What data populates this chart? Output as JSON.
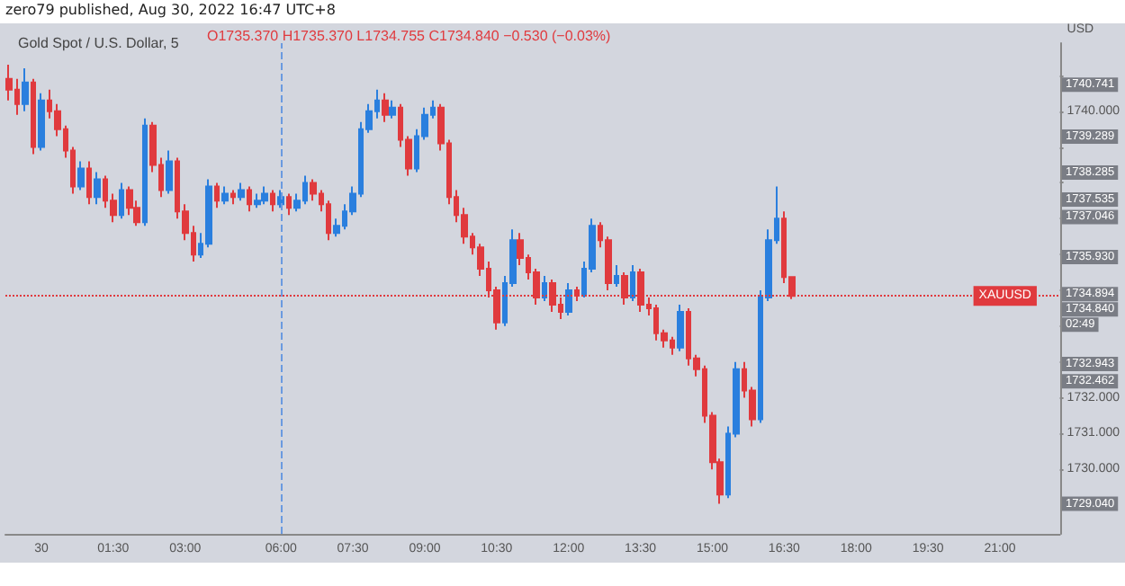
{
  "chart_data": {
    "type": "candlestick",
    "title": "zero79 published, Aug 30, 2022 16:47 UTC+8",
    "subtitle": "Gold Spot / U.S. Dollar, 5",
    "ylabel": "USD",
    "annotations": [
      "O1735.370 H1735.370 L1734.755 C1734.840 −0.530 (−0.03%)",
      "1740.741",
      "1739.289",
      "1738.285",
      "1737.535",
      "1737.046",
      "1735.930",
      "1734.894",
      "1734.840",
      "02:49",
      "1732.943",
      "1732.462",
      "1729.040"
    ],
    "categories": [
      null,
      null,
      null,
      null,
      "30",
      null,
      null,
      null,
      null,
      null,
      null,
      null,
      null,
      "01:30",
      null,
      null,
      null,
      null,
      null,
      null,
      null,
      null,
      "03:00",
      null,
      null,
      null,
      null,
      null,
      null,
      null,
      null,
      null,
      null,
      null,
      "06:00",
      null,
      null,
      null,
      null,
      null,
      null,
      null,
      null,
      "07:30",
      null,
      null,
      null,
      null,
      null,
      null,
      null,
      null,
      "09:00",
      null,
      null,
      null,
      null,
      null,
      null,
      null,
      null,
      "10:30",
      null,
      null,
      null,
      null,
      null,
      null,
      null,
      null,
      "12:00",
      null,
      null,
      null,
      null,
      null,
      null,
      null,
      null,
      "13:30",
      null,
      null,
      null,
      null,
      null,
      null,
      null,
      null,
      "15:00",
      null,
      null,
      null,
      null,
      null,
      null,
      null,
      null,
      "16:30",
      null,
      null,
      null,
      null,
      null,
      null,
      null,
      null,
      "18:00",
      null,
      null,
      null,
      null,
      null,
      null,
      null,
      null,
      "19:30",
      null,
      null,
      null,
      null,
      null,
      null,
      null,
      null,
      "21:00",
      null,
      null,
      null,
      null,
      null,
      null,
      null
    ],
    "ohlc": [
      [
        1740.9,
        1741.3,
        1740.3,
        1740.6
      ],
      [
        1740.6,
        1740.9,
        1739.9,
        1740.2
      ],
      [
        1740.2,
        1741.2,
        1740.0,
        1740.8
      ],
      [
        1740.8,
        1740.9,
        1738.8,
        1739.0
      ],
      [
        1739.0,
        1740.5,
        1738.9,
        1740.3
      ],
      [
        1740.3,
        1740.6,
        1739.8,
        1740.0
      ],
      [
        1740.0,
        1740.2,
        1739.3,
        1739.5
      ],
      [
        1739.5,
        1739.6,
        1738.7,
        1738.9
      ],
      [
        1738.9,
        1739.0,
        1737.7,
        1737.9
      ],
      [
        1737.9,
        1738.6,
        1737.8,
        1738.4
      ],
      [
        1738.4,
        1738.6,
        1737.4,
        1737.6
      ],
      [
        1737.6,
        1738.3,
        1737.4,
        1738.1
      ],
      [
        1738.1,
        1738.2,
        1737.3,
        1737.5
      ],
      [
        1737.5,
        1737.7,
        1736.9,
        1737.1
      ],
      [
        1737.1,
        1738.0,
        1737.0,
        1737.8
      ],
      [
        1737.8,
        1737.9,
        1737.1,
        1737.3
      ],
      [
        1737.3,
        1737.5,
        1736.8,
        1736.9
      ],
      [
        1736.9,
        1739.8,
        1736.8,
        1739.6
      ],
      [
        1739.6,
        1739.7,
        1738.3,
        1738.5
      ],
      [
        1738.5,
        1738.7,
        1737.6,
        1737.8
      ],
      [
        1737.8,
        1738.9,
        1737.7,
        1738.6
      ],
      [
        1738.6,
        1738.7,
        1737.0,
        1737.2
      ],
      [
        1737.2,
        1737.4,
        1736.4,
        1736.6
      ],
      [
        1736.6,
        1736.8,
        1735.8,
        1736.0
      ],
      [
        1736.0,
        1736.6,
        1735.9,
        1736.3
      ],
      [
        1736.3,
        1738.1,
        1736.2,
        1737.9
      ],
      [
        1737.9,
        1738.0,
        1737.3,
        1737.5
      ],
      [
        1737.5,
        1737.9,
        1737.4,
        1737.7
      ],
      [
        1737.7,
        1737.8,
        1737.4,
        1737.6
      ],
      [
        1737.6,
        1738.0,
        1737.5,
        1737.8
      ],
      [
        1737.8,
        1737.9,
        1737.2,
        1737.4
      ],
      [
        1737.4,
        1737.7,
        1737.3,
        1737.5
      ],
      [
        1737.5,
        1737.9,
        1737.4,
        1737.7
      ],
      [
        1737.7,
        1737.8,
        1737.2,
        1737.4
      ],
      [
        1737.4,
        1737.8,
        1737.3,
        1737.6
      ],
      [
        1737.6,
        1737.7,
        1737.1,
        1737.3
      ],
      [
        1737.3,
        1737.7,
        1737.2,
        1737.5
      ],
      [
        1737.5,
        1738.2,
        1737.4,
        1738.0
      ],
      [
        1738.0,
        1738.1,
        1737.5,
        1737.7
      ],
      [
        1737.7,
        1737.8,
        1737.2,
        1737.4
      ],
      [
        1737.4,
        1737.5,
        1736.4,
        1736.6
      ],
      [
        1736.6,
        1737.0,
        1736.5,
        1736.8
      ],
      [
        1736.8,
        1737.4,
        1736.7,
        1737.2
      ],
      [
        1737.2,
        1737.9,
        1737.1,
        1737.7
      ],
      [
        1737.7,
        1739.7,
        1737.6,
        1739.5
      ],
      [
        1739.5,
        1740.2,
        1739.4,
        1740.0
      ],
      [
        1740.0,
        1740.6,
        1739.8,
        1740.3
      ],
      [
        1740.3,
        1740.5,
        1739.7,
        1739.9
      ],
      [
        1739.9,
        1740.3,
        1739.8,
        1740.1
      ],
      [
        1740.1,
        1740.2,
        1739.0,
        1739.2
      ],
      [
        1739.2,
        1739.3,
        1738.2,
        1738.4
      ],
      [
        1738.4,
        1739.5,
        1738.3,
        1739.3
      ],
      [
        1739.3,
        1740.1,
        1739.2,
        1739.9
      ],
      [
        1739.9,
        1740.3,
        1739.8,
        1740.1
      ],
      [
        1740.1,
        1740.2,
        1738.9,
        1739.1
      ],
      [
        1739.1,
        1739.2,
        1737.4,
        1737.6
      ],
      [
        1737.6,
        1737.8,
        1736.9,
        1737.1
      ],
      [
        1737.1,
        1737.3,
        1736.3,
        1736.5
      ],
      [
        1736.5,
        1736.6,
        1736.0,
        1736.2
      ],
      [
        1736.2,
        1736.3,
        1735.4,
        1735.6
      ],
      [
        1735.6,
        1735.8,
        1734.8,
        1735.0
      ],
      [
        1735.0,
        1735.1,
        1733.9,
        1734.1
      ],
      [
        1734.1,
        1735.4,
        1734.0,
        1735.2
      ],
      [
        1735.2,
        1736.7,
        1735.1,
        1736.4
      ],
      [
        1736.4,
        1736.6,
        1735.7,
        1735.9
      ],
      [
        1735.9,
        1736.0,
        1735.3,
        1735.5
      ],
      [
        1735.5,
        1735.6,
        1734.6,
        1734.8
      ],
      [
        1734.8,
        1735.4,
        1734.7,
        1735.2
      ],
      [
        1735.2,
        1735.3,
        1734.4,
        1734.6
      ],
      [
        1734.6,
        1734.8,
        1734.2,
        1734.4
      ],
      [
        1734.4,
        1735.2,
        1734.3,
        1735.0
      ],
      [
        1735.0,
        1735.1,
        1734.7,
        1734.9
      ],
      [
        1734.9,
        1735.8,
        1734.8,
        1735.6
      ],
      [
        1735.6,
        1737.0,
        1735.5,
        1736.8
      ],
      [
        1736.8,
        1736.9,
        1736.2,
        1736.4
      ],
      [
        1736.4,
        1736.5,
        1735.0,
        1735.2
      ],
      [
        1735.2,
        1735.7,
        1735.1,
        1735.4
      ],
      [
        1735.4,
        1735.5,
        1734.6,
        1734.8
      ],
      [
        1734.8,
        1735.7,
        1734.7,
        1735.5
      ],
      [
        1735.5,
        1735.6,
        1734.4,
        1734.6
      ],
      [
        1734.6,
        1734.8,
        1734.3,
        1734.5
      ],
      [
        1734.5,
        1734.6,
        1733.6,
        1733.8
      ],
      [
        1733.8,
        1733.9,
        1733.4,
        1733.6
      ],
      [
        1733.6,
        1733.7,
        1733.2,
        1733.4
      ],
      [
        1733.4,
        1734.6,
        1733.3,
        1734.4
      ],
      [
        1734.4,
        1734.5,
        1732.9,
        1733.1
      ],
      [
        1733.1,
        1733.2,
        1732.6,
        1732.8
      ],
      [
        1732.8,
        1732.9,
        1731.3,
        1731.5
      ],
      [
        1731.5,
        1731.6,
        1730.0,
        1730.2
      ],
      [
        1730.2,
        1730.3,
        1729.04,
        1729.3
      ],
      [
        1729.3,
        1731.2,
        1729.2,
        1731.0
      ],
      [
        1731.0,
        1733.0,
        1730.9,
        1732.8
      ],
      [
        1732.8,
        1733.0,
        1732.0,
        1732.2
      ],
      [
        1732.2,
        1732.3,
        1731.2,
        1731.4
      ],
      [
        1731.4,
        1735.0,
        1731.3,
        1734.8
      ],
      [
        1734.8,
        1736.7,
        1734.7,
        1736.4
      ],
      [
        1736.4,
        1737.9,
        1736.3,
        1737.0
      ],
      [
        1737.0,
        1737.2,
        1735.2,
        1735.37
      ],
      [
        1735.37,
        1735.37,
        1734.755,
        1734.84
      ],
      null,
      null,
      null,
      null,
      null,
      null,
      null,
      null,
      null,
      null,
      null,
      null,
      null,
      null,
      null,
      null,
      null,
      null,
      null,
      null,
      null,
      null,
      null,
      null,
      null,
      null,
      null,
      null,
      null,
      null,
      null,
      null,
      null
    ],
    "ylim": [
      1728.2,
      1741.9
    ],
    "yticks": [
      {
        "value": 1730,
        "label": "1730.000"
      },
      {
        "value": 1731,
        "label": "1731.000"
      },
      {
        "value": 1732,
        "label": "1732.000"
      },
      {
        "value": 1733,
        "label": null
      },
      {
        "value": 1734,
        "label": null
      },
      {
        "value": 1735,
        "label": null
      },
      {
        "value": 1736,
        "label": null
      },
      {
        "value": 1737,
        "label": null
      },
      {
        "value": 1738,
        "label": null
      },
      {
        "value": 1739,
        "label": null
      },
      {
        "value": 1740,
        "label": "1740.000"
      },
      {
        "value": 1741,
        "label": null
      }
    ],
    "ref_lines": [
      {
        "axis": "x",
        "value": "06:00",
        "color": "#6a9ae0",
        "line_style": "dashed"
      },
      {
        "axis": "y",
        "value": 1734.84,
        "label": "XAUUSD",
        "color": "#e03a3e",
        "line_style": "dotted"
      }
    ],
    "grid": false
  }
}
